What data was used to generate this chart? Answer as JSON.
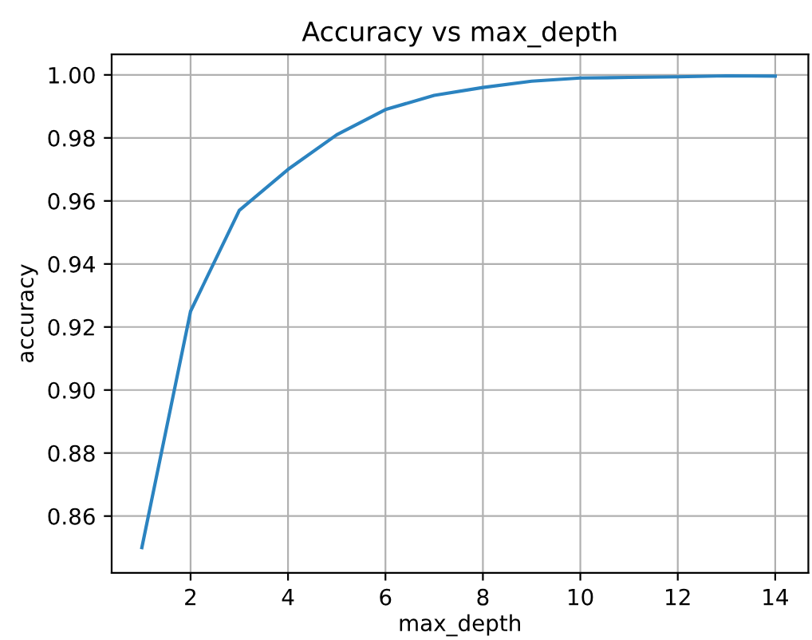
{
  "chart_data": {
    "type": "line",
    "title": "Accuracy vs max_depth",
    "xlabel": "max_depth",
    "ylabel": "accuracy",
    "x": [
      1,
      2,
      3,
      4,
      5,
      6,
      7,
      8,
      9,
      10,
      11,
      12,
      13,
      14
    ],
    "series": [
      {
        "color": "#2b83c0",
        "values": [
          0.85,
          0.925,
          0.957,
          0.97,
          0.981,
          0.989,
          0.9935,
          0.996,
          0.998,
          0.999,
          0.9992,
          0.9994,
          0.9997,
          0.9996
        ]
      }
    ],
    "xlim": [
      0.38,
      14.68
    ],
    "ylim": [
      0.842,
      1.0065
    ],
    "xticks": [
      2,
      4,
      6,
      8,
      10,
      12,
      14
    ],
    "yticks": [
      {
        "value": 0.86,
        "label": "0.86"
      },
      {
        "value": 0.88,
        "label": "0.88"
      },
      {
        "value": 0.9,
        "label": "0.90"
      },
      {
        "value": 0.92,
        "label": "0.92"
      },
      {
        "value": 0.94,
        "label": "0.94"
      },
      {
        "value": 0.96,
        "label": "0.96"
      },
      {
        "value": 0.98,
        "label": "0.98"
      },
      {
        "value": 1.0,
        "label": "1.00"
      }
    ],
    "grid": true,
    "marker": "none",
    "line_style": "solid"
  }
}
